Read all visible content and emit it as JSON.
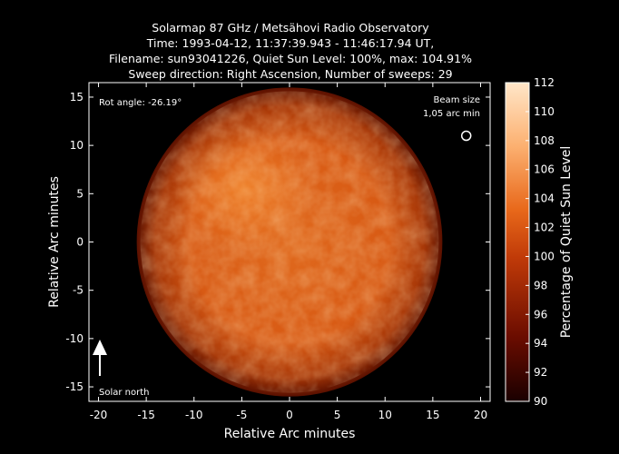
{
  "title_lines": [
    "Solarmap 87 GHz / Metsähovi Radio Observatory",
    "Time: 1993-04-12, 11:37:39.943 - 11:46:17.94 UT,",
    "Filename: sun93041226, Quiet Sun Level: 100%, max: 104.91%",
    "Sweep direction: Right Ascension, Number of sweeps: 29"
  ],
  "chart_data": {
    "type": "heatmap",
    "xlabel": "Relative Arc minutes",
    "ylabel": "Relative Arc minutes",
    "xlim": [
      -21,
      21
    ],
    "ylim": [
      -16.5,
      16.5
    ],
    "x_ticks": [
      -20,
      -15,
      -10,
      -5,
      0,
      5,
      10,
      15,
      20
    ],
    "y_ticks": [
      -15,
      -10,
      -5,
      0,
      5,
      10,
      15
    ],
    "colorbar": {
      "label": "Percentage of Quiet Sun Level",
      "range": [
        90,
        112
      ],
      "ticks": [
        90,
        92,
        94,
        96,
        98,
        100,
        102,
        104,
        106,
        108,
        110,
        112
      ]
    },
    "disk": {
      "center": [
        0,
        0
      ],
      "radius_arcmin": 16,
      "typical_level": 102,
      "max_level": 104.91,
      "limb_level": 96
    },
    "annotations": {
      "rot_angle": "Rot angle: -26.19°",
      "beam_size_line1": "Beam size",
      "beam_size_line2": "1,05 arc min",
      "beam_position": [
        18.5,
        11
      ],
      "solar_north": "Solar north"
    },
    "colors": {
      "low": "#1a0000",
      "mid": "#c03a08",
      "high": "#ffe6c8"
    }
  }
}
